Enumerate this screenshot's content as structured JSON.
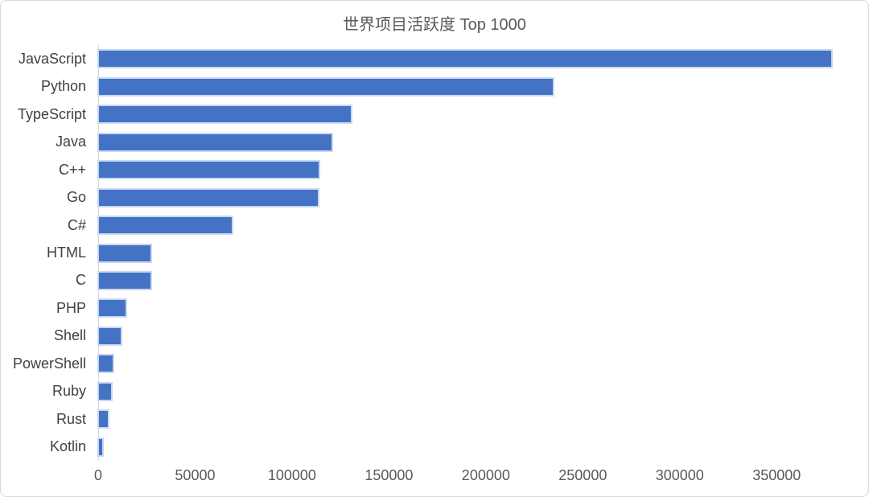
{
  "chart_data": {
    "type": "bar",
    "orientation": "horizontal",
    "title": "世界项目活跃度 Top 1000",
    "categories": [
      "JavaScript",
      "Python",
      "TypeScript",
      "Java",
      "C++",
      "Go",
      "C#",
      "HTML",
      "C",
      "PHP",
      "Shell",
      "PowerShell",
      "Ruby",
      "Rust",
      "Kotlin"
    ],
    "values": [
      378000,
      234500,
      130000,
      120000,
      113500,
      113000,
      68700,
      26400,
      26500,
      13800,
      11400,
      6900,
      6400,
      4500,
      1600
    ],
    "xlabel": "",
    "ylabel": "",
    "xlim": [
      0,
      396800
    ],
    "x_tick_interval": 50000,
    "x_ticks": [
      0,
      50000,
      100000,
      150000,
      200000,
      250000,
      300000,
      350000
    ],
    "x_tick_labels": [
      "0",
      "50000",
      "100000",
      "150000",
      "200000",
      "250000",
      "300000",
      "350000"
    ],
    "grid": false,
    "legend": null,
    "bar_color": "#4472C4",
    "bar_halo_color": "#c9d8f2",
    "axis_line_color": "#d6d6d6",
    "title_color": "#595959",
    "category_label_color": "#404040",
    "tick_label_color": "#595959",
    "background_color": "#ffffff",
    "frame_border_color": "#d8d8d8"
  }
}
